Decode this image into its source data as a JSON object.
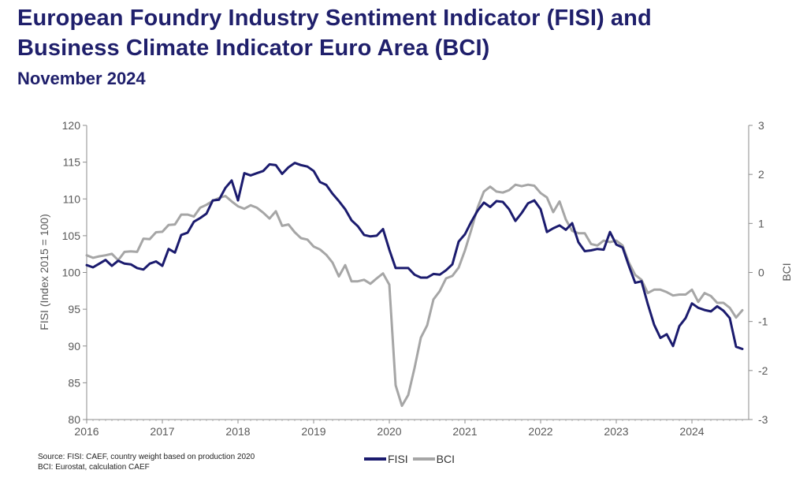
{
  "header": {
    "title_line1": "European Foundry Industry Sentiment Indicator (FISI) and",
    "title_line2": "Business Climate Indicator Euro Area (BCI)",
    "subtitle": "November 2024"
  },
  "footer": {
    "source_line1": "Source: FISI: CAEF, country weight based on production 2020",
    "source_line2": "BCI: Eurostat, calculation CAEF"
  },
  "colors": {
    "fisi": "#1b1b6e",
    "bci": "#a6a6a6",
    "axis": "#8c8c8c"
  },
  "chart_data": {
    "type": "line",
    "xlabel": "",
    "ylabel": "FISI (Index 2015 = 100)",
    "y2label": "BCI",
    "xlim": [
      2016,
      2024.67
    ],
    "ylim": [
      80,
      120
    ],
    "y2lim": [
      -3,
      3
    ],
    "x_ticks": [
      "2016",
      "2017",
      "2018",
      "2019",
      "2020",
      "2021",
      "2022",
      "2023",
      "2024"
    ],
    "y_ticks": [
      "80",
      "85",
      "90",
      "95",
      "100",
      "105",
      "110",
      "115",
      "120"
    ],
    "y2_ticks": [
      "-3",
      "-2",
      "-1",
      "0",
      "1",
      "2",
      "3"
    ],
    "grid": false,
    "legend": "bottom-center",
    "series": [
      {
        "name": "FISI",
        "axis": "left",
        "x": [
          2016.0,
          2016.083,
          2016.167,
          2016.25,
          2016.333,
          2016.417,
          2016.5,
          2016.583,
          2016.667,
          2016.75,
          2016.833,
          2016.917,
          2017.0,
          2017.083,
          2017.167,
          2017.25,
          2017.333,
          2017.417,
          2017.5,
          2017.583,
          2017.667,
          2017.75,
          2017.833,
          2017.917,
          2018.0,
          2018.083,
          2018.167,
          2018.25,
          2018.333,
          2018.417,
          2018.5,
          2018.583,
          2018.667,
          2018.75,
          2018.833,
          2018.917,
          2019.0,
          2019.083,
          2019.167,
          2019.25,
          2019.333,
          2019.417,
          2019.5,
          2019.583,
          2019.667,
          2019.75,
          2019.833,
          2019.917,
          2020.0,
          2020.083,
          2020.167,
          2020.25,
          2020.333,
          2020.417,
          2020.5,
          2020.583,
          2020.667,
          2020.75,
          2020.833,
          2020.917,
          2021.0,
          2021.083,
          2021.167,
          2021.25,
          2021.333,
          2021.417,
          2021.5,
          2021.583,
          2021.667,
          2021.75,
          2021.833,
          2021.917,
          2022.0,
          2022.083,
          2022.167,
          2022.25,
          2022.333,
          2022.417,
          2022.5,
          2022.583,
          2022.667,
          2022.75,
          2022.833,
          2022.917,
          2023.0,
          2023.083,
          2023.167,
          2023.25,
          2023.333,
          2023.417,
          2023.5,
          2023.583,
          2023.667,
          2023.75,
          2023.833,
          2023.917,
          2024.0,
          2024.083,
          2024.167,
          2024.25,
          2024.333,
          2024.417,
          2024.5,
          2024.583,
          2024.667
        ],
        "values": [
          101.0,
          100.7,
          101.2,
          101.7,
          100.9,
          101.6,
          101.2,
          101.1,
          100.6,
          100.4,
          101.2,
          101.5,
          100.9,
          103.2,
          102.7,
          105.1,
          105.4,
          106.9,
          107.4,
          108.0,
          109.8,
          109.9,
          111.5,
          112.5,
          109.8,
          113.5,
          113.2,
          113.5,
          113.8,
          114.7,
          114.6,
          113.4,
          114.3,
          114.9,
          114.6,
          114.4,
          113.8,
          112.3,
          111.9,
          110.7,
          109.7,
          108.6,
          107.1,
          106.3,
          105.1,
          104.9,
          105.0,
          105.9,
          103.1,
          100.6,
          100.6,
          100.6,
          99.7,
          99.3,
          99.3,
          99.8,
          99.7,
          100.3,
          101.1,
          104.2,
          105.2,
          106.9,
          108.4,
          109.5,
          108.9,
          109.7,
          109.6,
          108.6,
          107.0,
          108.1,
          109.4,
          109.8,
          108.6,
          105.5,
          106.0,
          106.4,
          105.8,
          106.7,
          104.1,
          102.9,
          103.0,
          103.2,
          103.1,
          105.5,
          103.8,
          103.4,
          100.9,
          98.6,
          98.8,
          95.7,
          92.9,
          91.1,
          91.6,
          90.0,
          92.7,
          93.8,
          95.8,
          95.2,
          94.9,
          94.7,
          95.4,
          94.8,
          93.8,
          89.9,
          89.6
        ]
      },
      {
        "name": "BCI",
        "axis": "right",
        "x": [
          2016.0,
          2016.083,
          2016.167,
          2016.25,
          2016.333,
          2016.417,
          2016.5,
          2016.583,
          2016.667,
          2016.75,
          2016.833,
          2016.917,
          2017.0,
          2017.083,
          2017.167,
          2017.25,
          2017.333,
          2017.417,
          2017.5,
          2017.583,
          2017.667,
          2017.75,
          2017.833,
          2017.917,
          2018.0,
          2018.083,
          2018.167,
          2018.25,
          2018.333,
          2018.417,
          2018.5,
          2018.583,
          2018.667,
          2018.75,
          2018.833,
          2018.917,
          2019.0,
          2019.083,
          2019.167,
          2019.25,
          2019.333,
          2019.417,
          2019.5,
          2019.583,
          2019.667,
          2019.75,
          2019.833,
          2019.917,
          2020.0,
          2020.083,
          2020.167,
          2020.25,
          2020.333,
          2020.417,
          2020.5,
          2020.583,
          2020.667,
          2020.75,
          2020.833,
          2020.917,
          2021.0,
          2021.083,
          2021.167,
          2021.25,
          2021.333,
          2021.417,
          2021.5,
          2021.583,
          2021.667,
          2021.75,
          2021.833,
          2021.917,
          2022.0,
          2022.083,
          2022.167,
          2022.25,
          2022.333,
          2022.417,
          2022.5,
          2022.583,
          2022.667,
          2022.75,
          2022.833,
          2022.917,
          2023.0,
          2023.083,
          2023.167,
          2023.25,
          2023.333,
          2023.417,
          2023.5,
          2023.583,
          2023.667,
          2023.75,
          2023.833,
          2023.917,
          2024.0,
          2024.083,
          2024.167,
          2024.25,
          2024.333,
          2024.417,
          2024.5,
          2024.583,
          2024.667
        ],
        "values": [
          0.35,
          0.3,
          0.33,
          0.35,
          0.38,
          0.25,
          0.42,
          0.43,
          0.42,
          0.69,
          0.68,
          0.82,
          0.83,
          0.97,
          0.98,
          1.18,
          1.18,
          1.14,
          1.32,
          1.38,
          1.46,
          1.52,
          1.56,
          1.45,
          1.35,
          1.3,
          1.37,
          1.32,
          1.22,
          1.1,
          1.25,
          0.95,
          0.98,
          0.82,
          0.7,
          0.67,
          0.53,
          0.47,
          0.36,
          0.2,
          -0.08,
          0.15,
          -0.18,
          -0.18,
          -0.15,
          -0.23,
          -0.12,
          -0.02,
          -0.25,
          -2.3,
          -2.72,
          -2.5,
          -1.95,
          -1.33,
          -1.08,
          -0.55,
          -0.38,
          -0.12,
          -0.07,
          0.1,
          0.45,
          0.87,
          1.32,
          1.65,
          1.75,
          1.65,
          1.63,
          1.68,
          1.79,
          1.76,
          1.79,
          1.77,
          1.62,
          1.53,
          1.23,
          1.45,
          1.08,
          0.85,
          0.8,
          0.8,
          0.58,
          0.55,
          0.65,
          0.62,
          0.65,
          0.55,
          0.2,
          -0.05,
          -0.15,
          -0.42,
          -0.35,
          -0.35,
          -0.4,
          -0.47,
          -0.45,
          -0.45,
          -0.35,
          -0.6,
          -0.42,
          -0.48,
          -0.62,
          -0.62,
          -0.72,
          -0.92,
          -0.77
        ]
      }
    ]
  }
}
